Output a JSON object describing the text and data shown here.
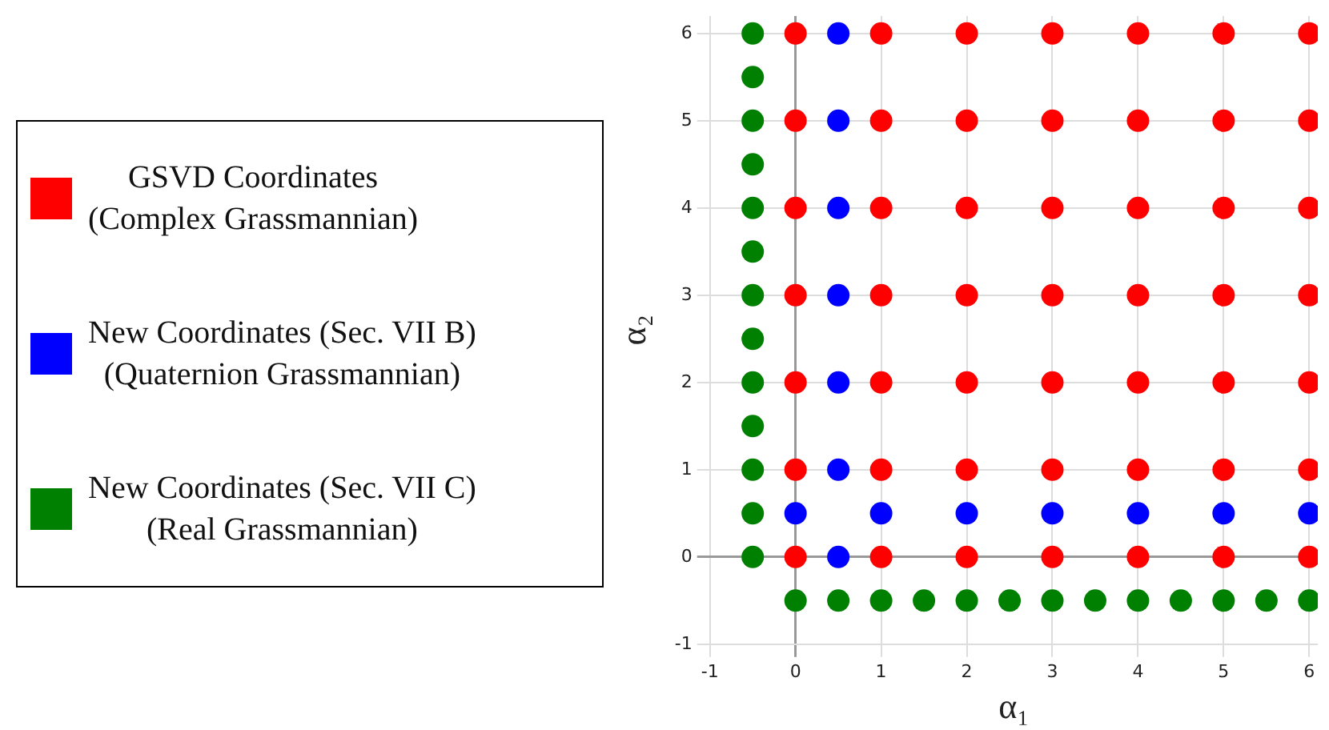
{
  "chart_data": {
    "type": "scatter",
    "xlabel": "α₁",
    "ylabel": "α₂",
    "xlim": [
      -1,
      6.1
    ],
    "ylim": [
      -1,
      6.2
    ],
    "xticks": [
      -1,
      0,
      1,
      2,
      3,
      4,
      5,
      6
    ],
    "yticks": [
      -1,
      0,
      1,
      2,
      3,
      4,
      5,
      6
    ],
    "grid": true,
    "legend": "left",
    "marker": "circle",
    "series": [
      {
        "name": "GSVD Coordinates\n(Complex Grassmannian)",
        "color": "#ff0000",
        "x": [
          0,
          1,
          2,
          3,
          4,
          5,
          6,
          0,
          1,
          2,
          3,
          4,
          5,
          6,
          0,
          1,
          2,
          3,
          4,
          5,
          6,
          0,
          1,
          2,
          3,
          4,
          5,
          6,
          0,
          1,
          2,
          3,
          4,
          5,
          6,
          0,
          1,
          2,
          3,
          4,
          5,
          6,
          0,
          1,
          2,
          3,
          4,
          5,
          6
        ],
        "values": [
          0,
          0,
          0,
          0,
          0,
          0,
          0,
          1,
          1,
          1,
          1,
          1,
          1,
          1,
          2,
          2,
          2,
          2,
          2,
          2,
          2,
          3,
          3,
          3,
          3,
          3,
          3,
          3,
          4,
          4,
          4,
          4,
          4,
          4,
          4,
          5,
          5,
          5,
          5,
          5,
          5,
          5,
          6,
          6,
          6,
          6,
          6,
          6,
          6
        ]
      },
      {
        "name": "New Coordinates (Sec. VII B)\n(Quaternion Grassmannian)",
        "color": "#0000ff",
        "x": [
          0.5,
          0.5,
          0.5,
          0.5,
          0.5,
          0.5,
          0.5,
          0,
          1,
          2,
          3,
          4,
          5,
          6
        ],
        "values": [
          0,
          1,
          2,
          3,
          4,
          5,
          6,
          0.5,
          0.5,
          0.5,
          0.5,
          0.5,
          0.5,
          0.5
        ]
      },
      {
        "name": "New Coordinates (Sec. VII C)\n(Real Grassmannian)",
        "color": "#008000",
        "x": [
          -0.5,
          -0.5,
          -0.5,
          -0.5,
          -0.5,
          -0.5,
          -0.5,
          -0.5,
          -0.5,
          -0.5,
          -0.5,
          -0.5,
          -0.5,
          0,
          0.5,
          1,
          1.5,
          2,
          2.5,
          3,
          3.5,
          4,
          4.5,
          5,
          5.5,
          6
        ],
        "values": [
          0,
          0.5,
          1,
          1.5,
          2,
          2.5,
          3,
          3.5,
          4,
          4.5,
          5,
          5.5,
          6,
          -0.5,
          -0.5,
          -0.5,
          -0.5,
          -0.5,
          -0.5,
          -0.5,
          -0.5,
          -0.5,
          -0.5,
          -0.5,
          -0.5,
          -0.5
        ]
      }
    ]
  }
}
